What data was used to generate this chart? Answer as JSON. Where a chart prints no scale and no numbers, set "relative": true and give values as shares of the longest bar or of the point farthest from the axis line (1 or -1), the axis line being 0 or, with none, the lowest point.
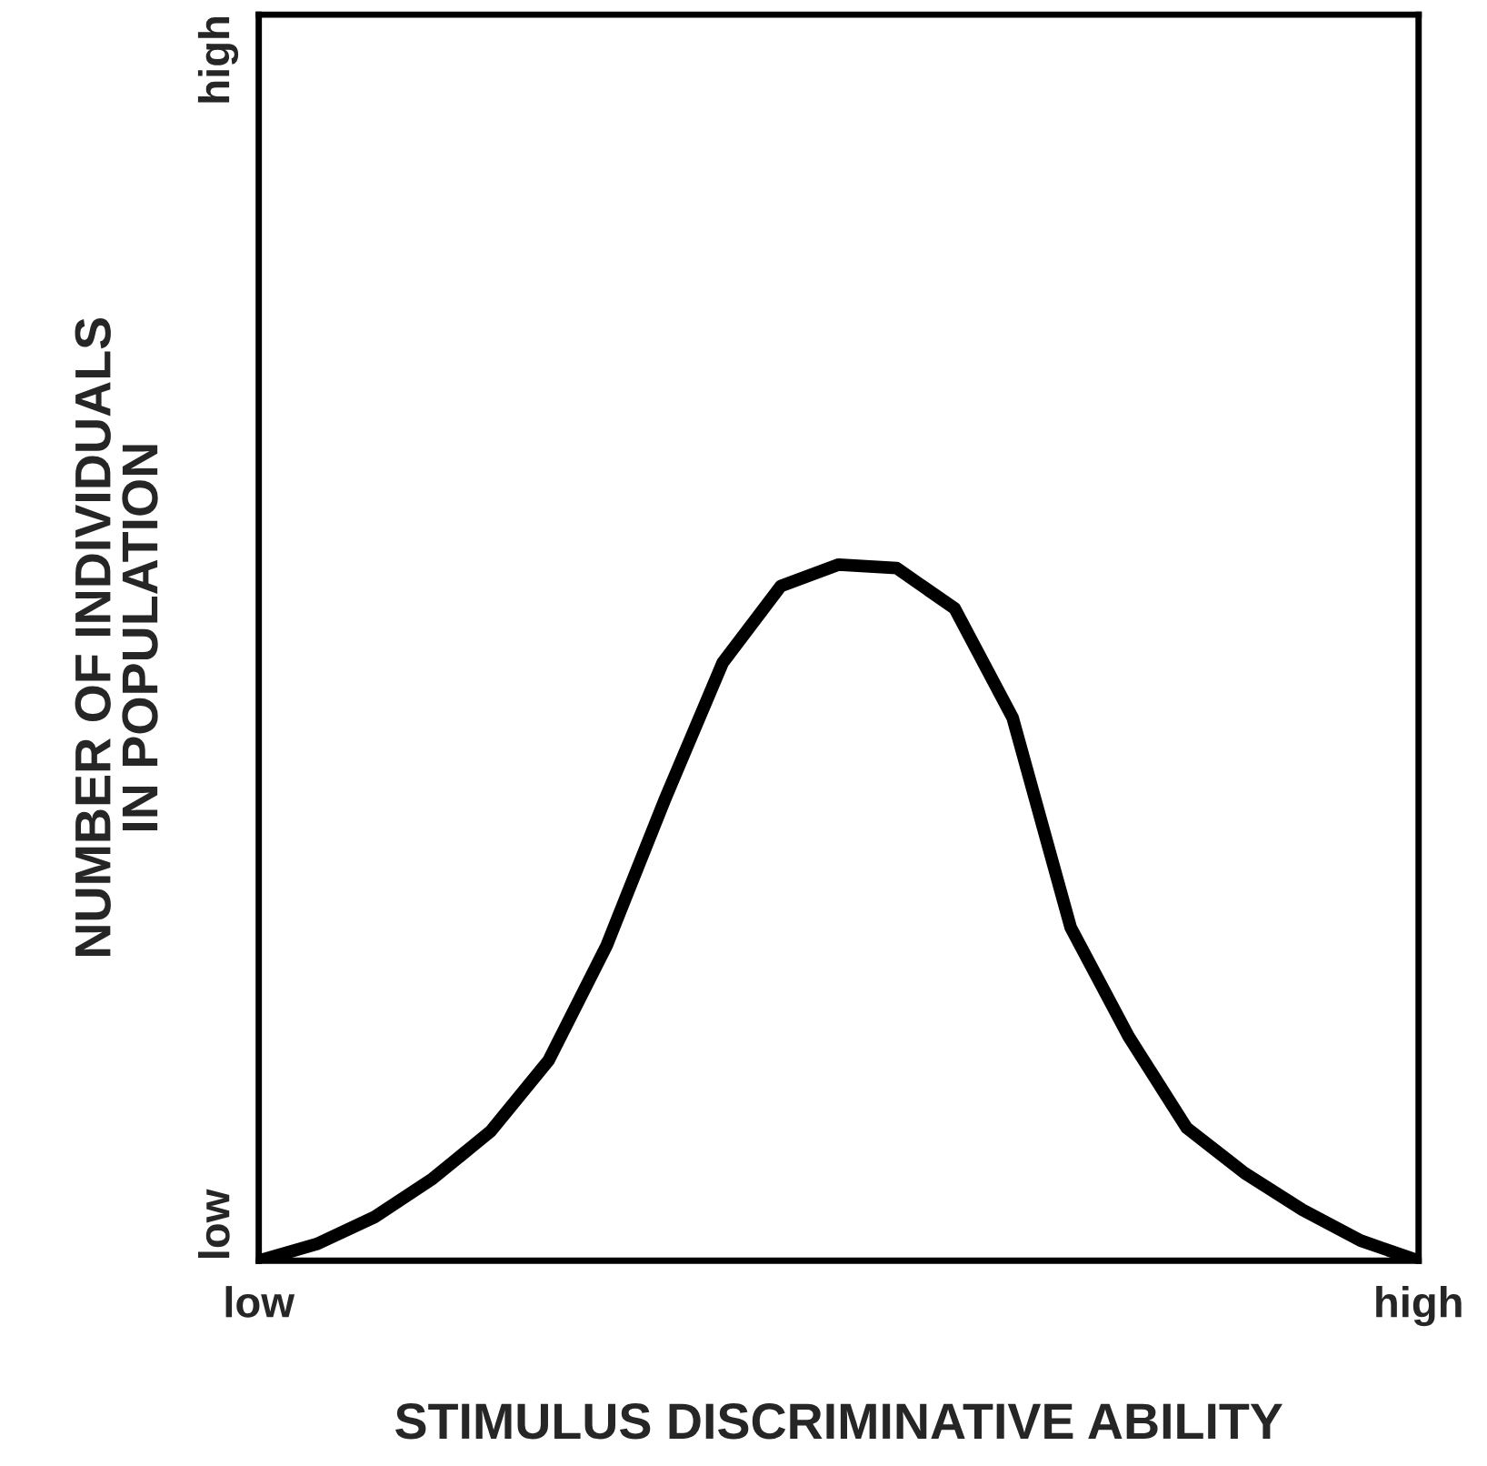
{
  "chart_data": {
    "type": "line",
    "relative": true,
    "xlabel": "STIMULUS DISCRIMINATIVE ABILITY",
    "ylabel": "NUMBER OF INDIVIDUALS\nIN POPULATION",
    "categories": [
      "low",
      null,
      null,
      null,
      null,
      null,
      null,
      null,
      null,
      null,
      null,
      null,
      null,
      null,
      null,
      null,
      null,
      null,
      null,
      null,
      "high"
    ],
    "series": [
      {
        "color": "#000000",
        "values": [
          0,
          0.024,
          0.063,
          0.118,
          0.186,
          0.288,
          0.453,
          0.662,
          0.859,
          0.969,
          1,
          0.995,
          0.937,
          0.78,
          0.479,
          0.322,
          0.191,
          0.126,
          0.073,
          0.029,
          0
        ]
      }
    ],
    "annotations": [
      "low",
      "high"
    ],
    "legend": false,
    "marker": "none",
    "line_style": "solid"
  }
}
